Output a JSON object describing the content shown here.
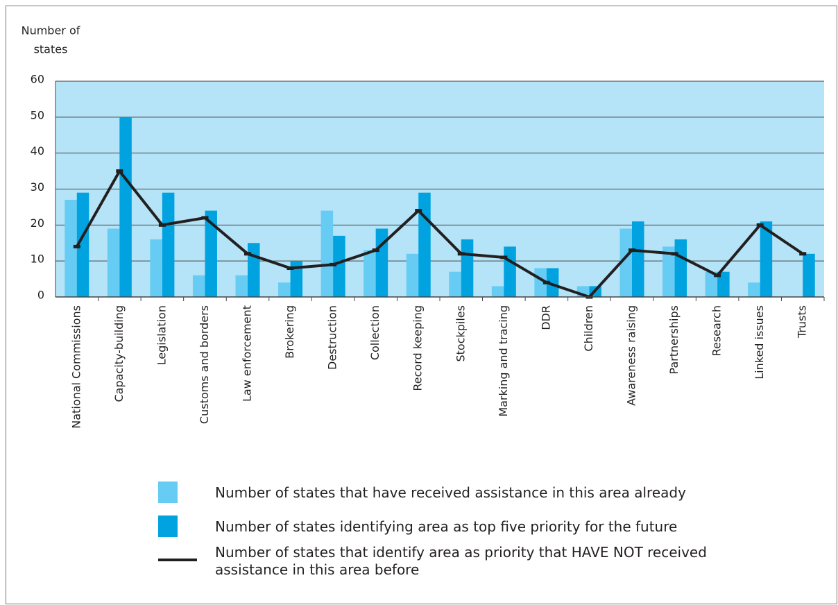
{
  "chart_data": {
    "type": "bar_line",
    "y_label": [
      "Number of",
      "states"
    ],
    "categories": [
      "National Commissions",
      "Capacity-building",
      "Legislation",
      "Customs and borders",
      "Law enforcement",
      "Brokering",
      "Destruction",
      "Collection",
      "Record keeping",
      "Stockpiles",
      "Marking and tracing",
      "DDR",
      "Children",
      "Awareness raising",
      "Partnerships",
      "Research",
      "Linked issues",
      "Trusts"
    ],
    "series": [
      {
        "name": "Number of states that have received assistance in this area already",
        "type": "bar",
        "color": "#66ccf4",
        "values": [
          27,
          19,
          16,
          6,
          6,
          4,
          24,
          13,
          12,
          7,
          3,
          8,
          3,
          19,
          14,
          7,
          4,
          0
        ]
      },
      {
        "name": "Number of states identifying area as top five priority for the future",
        "type": "bar",
        "color": "#00a3e0",
        "values": [
          29,
          50,
          29,
          24,
          15,
          10,
          17,
          19,
          29,
          16,
          14,
          8,
          3,
          21,
          16,
          7,
          21,
          12
        ]
      },
      {
        "name": "Number of states that identify area as priority that HAVE NOT received assistance in this area before",
        "type": "line",
        "color": "#231f20",
        "values": [
          14,
          35,
          20,
          22,
          12,
          8,
          9,
          13,
          24,
          12,
          11,
          4,
          0,
          13,
          12,
          6,
          20,
          12
        ]
      }
    ],
    "ylim": [
      0,
      60
    ],
    "yticks": [
      0,
      10,
      20,
      30,
      40,
      50,
      60
    ],
    "grid": true,
    "plot_background": "#b5e3f7"
  }
}
